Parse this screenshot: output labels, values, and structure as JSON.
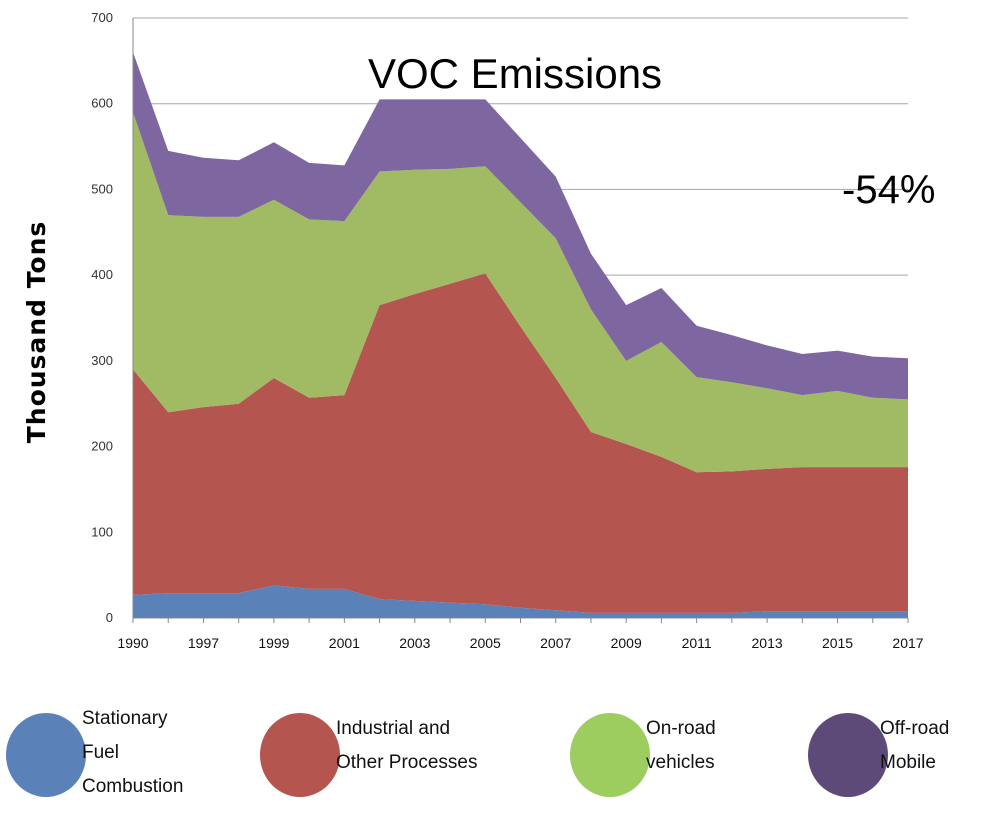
{
  "chart_data": {
    "type": "area",
    "stacked": true,
    "title": "VOC Emissions",
    "annotation": "-54%",
    "xlabel": "",
    "ylabel": "Thousand  Tons",
    "ylim": [
      0,
      700
    ],
    "yticks": [
      0,
      100,
      200,
      300,
      400,
      500,
      600,
      700
    ],
    "grid": true,
    "legend_position": "bottom",
    "categories": [
      "1990",
      "1996",
      "1997",
      "1998",
      "1999",
      "2000",
      "2001",
      "2002",
      "2003",
      "2004",
      "2005",
      "2006",
      "2007",
      "2008",
      "2009",
      "2010",
      "2011",
      "2012",
      "2013",
      "2014",
      "2015",
      "2016",
      "2017"
    ],
    "xtick_labels": [
      "1990",
      "1997",
      "1999",
      "2001",
      "2003",
      "2005",
      "2007",
      "2009",
      "2011",
      "2013",
      "2015",
      "2017"
    ],
    "series": [
      {
        "name": "Stationary Fuel Combustion",
        "legend_lines": [
          "Stationary",
          "Fuel",
          "Combustion"
        ],
        "color": "#5b82b8",
        "legend_color": "#5b82b8",
        "values": [
          27,
          29,
          29,
          29,
          38,
          34,
          34,
          22,
          20,
          18,
          16,
          12,
          9,
          6,
          6,
          6,
          6,
          6,
          8,
          8,
          8,
          8,
          8
        ]
      },
      {
        "name": "Industrial and Other Processes",
        "legend_lines": [
          "Industrial and",
          "Other Processes"
        ],
        "color": "#b55550",
        "legend_color": "#b55550",
        "values": [
          263,
          211,
          217,
          221,
          242,
          223,
          226,
          343,
          358,
          372,
          386,
          328,
          271,
          211,
          197,
          182,
          164,
          165,
          166,
          168,
          168,
          168,
          168
        ]
      },
      {
        "name": "On-road vehicles",
        "legend_lines": [
          "On-road",
          "vehicles"
        ],
        "color": "#a0bb63",
        "legend_color": "#9dcc5f",
        "values": [
          300,
          230,
          222,
          218,
          208,
          208,
          203,
          156,
          145,
          134,
          125,
          145,
          163,
          143,
          97,
          134,
          111,
          104,
          94,
          84,
          89,
          81,
          79
        ]
      },
      {
        "name": "Off-road Mobile",
        "legend_lines": [
          "Off-road",
          "Mobile"
        ],
        "color": "#7e67a0",
        "legend_color": "#5d4a78",
        "values": [
          70,
          75,
          69,
          66,
          67,
          66,
          65,
          84,
          82,
          81,
          78,
          75,
          72,
          65,
          65,
          63,
          60,
          55,
          50,
          48,
          47,
          48,
          48
        ]
      }
    ]
  }
}
